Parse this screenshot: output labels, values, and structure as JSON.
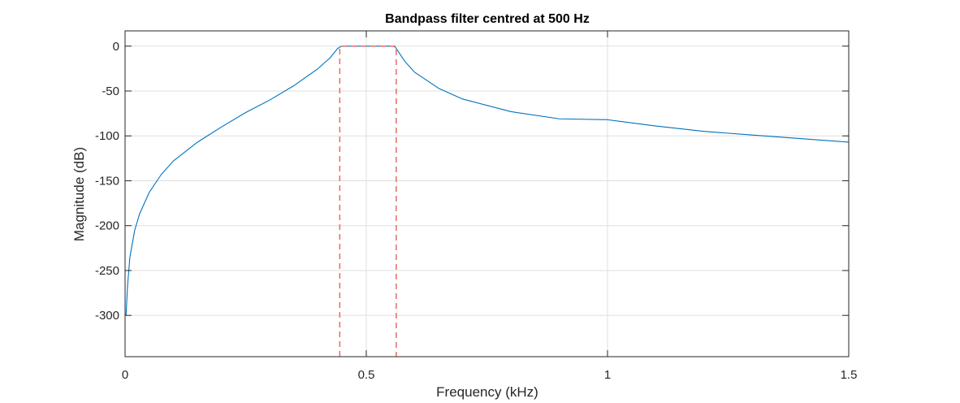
{
  "chart_data": {
    "type": "line",
    "title": "Bandpass filter centred at 500 Hz",
    "xlabel": "Frequency (kHz)",
    "ylabel": "Magnitude (dB)",
    "xlim": [
      0,
      1.5
    ],
    "ylim": [
      -346,
      17
    ],
    "xticks": [
      0,
      0.5,
      1,
      1.5
    ],
    "xtick_labels": [
      "0",
      "0.5",
      "1",
      "1.5"
    ],
    "yticks": [
      0,
      -50,
      -100,
      -150,
      -200,
      -250,
      -300
    ],
    "ytick_labels": [
      "0",
      "-50",
      "-100",
      "-150",
      "-200",
      "-250",
      "-300"
    ],
    "grid": true,
    "legend": "none",
    "series": [
      {
        "color": "#0072BD",
        "style": "solid",
        "x": [
          0.002,
          0.005,
          0.01,
          0.02,
          0.03,
          0.05,
          0.075,
          0.1,
          0.15,
          0.2,
          0.25,
          0.3,
          0.35,
          0.4,
          0.425,
          0.44,
          0.445,
          0.45,
          0.5,
          0.555,
          0.56,
          0.57,
          0.58,
          0.6,
          0.65,
          0.7,
          0.8,
          0.9,
          1.0,
          1.1,
          1.2,
          1.3,
          1.4,
          1.5
        ],
        "y": [
          -300,
          -268,
          -235,
          -205,
          -187,
          -163,
          -143,
          -128,
          -107,
          -90,
          -74,
          -60,
          -44,
          -25,
          -13,
          -3,
          -1,
          0,
          0,
          0,
          -1,
          -9,
          -17,
          -29,
          -47,
          -59,
          -73,
          -81,
          -82,
          -89,
          -95,
          -99,
          -103,
          -107
        ]
      },
      {
        "color": "#E8746B",
        "style": "dashed",
        "x": [
          0.445,
          0.445,
          0.5,
          0.562,
          0.562
        ],
        "y": [
          -346,
          0,
          0,
          0,
          -346
        ]
      }
    ]
  }
}
